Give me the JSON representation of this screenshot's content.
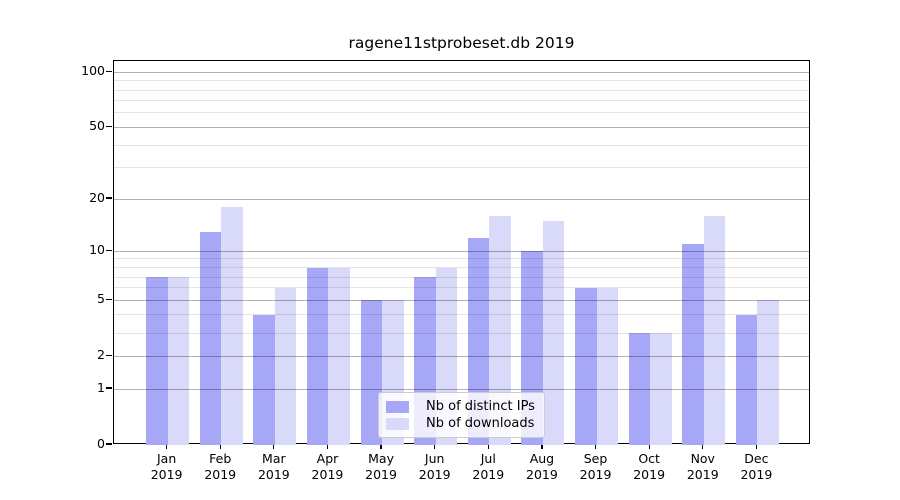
{
  "title": "ragene11stprobeset.db 2019",
  "colors": {
    "distinct_ips_bar": "#a7a7f7",
    "downloads_bar": "#d9d9fa",
    "major_grid": "rgba(0,0,0,0.30)",
    "minor_grid": "rgba(0,0,0,0.10)",
    "spine": "#000000",
    "background": "#ffffff"
  },
  "legend": {
    "items": [
      {
        "label": "Nb of distinct IPs",
        "color": "#a7a7f7"
      },
      {
        "label": "Nb of downloads",
        "color": "#d9d9fa"
      }
    ]
  },
  "chart_data": {
    "type": "bar",
    "title": "ragene11stprobeset.db 2019",
    "categories": [
      "Jan 2019",
      "Feb 2019",
      "Mar 2019",
      "Apr 2019",
      "May 2019",
      "Jun 2019",
      "Jul 2019",
      "Aug 2019",
      "Sep 2019",
      "Oct 2019",
      "Nov 2019",
      "Dec 2019"
    ],
    "series": [
      {
        "name": "Nb of distinct IPs",
        "color": "#a7a7f7",
        "values": [
          7,
          13,
          4,
          8,
          5,
          7,
          12,
          10,
          6,
          3,
          11,
          4
        ]
      },
      {
        "name": "Nb of downloads",
        "color": "#d9d9fa",
        "values": [
          7,
          18,
          6,
          8,
          5,
          8,
          16,
          15,
          6,
          3,
          16,
          5
        ]
      }
    ],
    "xlabel": "",
    "ylabel": "",
    "yscale": "log10(value+1)",
    "yticks": [
      0,
      1,
      2,
      5,
      10,
      20,
      50,
      100
    ],
    "minor_yticks": [
      3,
      4,
      6,
      7,
      8,
      9,
      30,
      40,
      60,
      70,
      80,
      90
    ],
    "ylim": [
      0,
      115
    ],
    "grid": true,
    "legend_position": "lower center"
  }
}
